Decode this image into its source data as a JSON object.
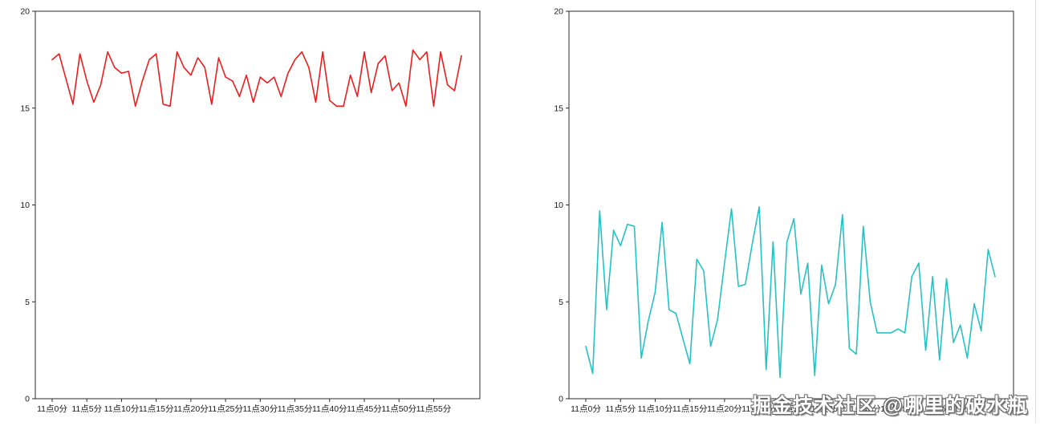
{
  "watermark": {
    "text": "掘金技术社区 @哪里的破水瓶"
  },
  "chart_data": [
    {
      "type": "line",
      "position": "left",
      "title": "",
      "xlabel": "",
      "ylabel": "",
      "line_color": "#ee1c1c",
      "ylim": [
        0,
        20
      ],
      "yticks": [
        0,
        5,
        10,
        15,
        20
      ],
      "x_tick_labels": [
        "11点0分",
        "11点5分",
        "11点10分",
        "11点15分",
        "11点20分",
        "11点25分",
        "11点30分",
        "11点35分",
        "11点40分",
        "11点45分",
        "11点50分",
        "11点55分"
      ],
      "x_tick_every_n_points": 5,
      "grid": false,
      "legend": "none",
      "values": [
        17.5,
        17.8,
        16.5,
        15.2,
        17.8,
        16.4,
        15.3,
        16.2,
        17.9,
        17.1,
        16.8,
        16.9,
        15.1,
        16.4,
        17.5,
        17.8,
        15.2,
        15.1,
        17.9,
        17.1,
        16.7,
        17.6,
        17.1,
        15.2,
        17.6,
        16.6,
        16.4,
        15.6,
        16.7,
        15.3,
        16.6,
        16.3,
        16.6,
        15.6,
        16.8,
        17.5,
        17.9,
        17.1,
        15.3,
        17.9,
        15.4,
        15.1,
        15.1,
        16.7,
        15.6,
        17.9,
        15.8,
        17.3,
        17.7,
        15.9,
        16.3,
        15.1,
        18.0,
        17.5,
        17.9,
        15.1,
        17.9,
        16.2,
        15.9,
        17.7
      ]
    },
    {
      "type": "line",
      "position": "right",
      "title": "",
      "xlabel": "",
      "ylabel": "",
      "line_color": "#25c2c4",
      "ylim": [
        0,
        20
      ],
      "yticks": [
        0,
        5,
        10,
        15,
        20
      ],
      "x_tick_labels": [
        "11点0分",
        "11点5分",
        "11点10分",
        "11点15分",
        "11点20分",
        "11点25分",
        "11点30分",
        "11点35分",
        "11点40分",
        "11点45分",
        "11点50分",
        "11点55分"
      ],
      "x_tick_every_n_points": 5,
      "grid": false,
      "legend": "none",
      "values": [
        2.7,
        1.3,
        9.7,
        4.6,
        8.7,
        7.9,
        9.0,
        8.9,
        2.1,
        4.0,
        5.5,
        9.1,
        4.6,
        4.4,
        3.1,
        1.8,
        7.2,
        6.6,
        2.7,
        4.1,
        7.0,
        9.8,
        5.8,
        5.9,
        8.0,
        9.9,
        1.5,
        8.1,
        1.1,
        8.1,
        9.3,
        5.4,
        7.0,
        1.2,
        6.9,
        4.9,
        5.9,
        9.5,
        2.6,
        2.3,
        8.9,
        5.0,
        3.4,
        3.4,
        3.4,
        3.6,
        3.4,
        6.3,
        7.0,
        2.5,
        6.3,
        2.0,
        6.2,
        2.9,
        3.8,
        2.1,
        4.9,
        3.5,
        7.7,
        6.3
      ]
    }
  ]
}
